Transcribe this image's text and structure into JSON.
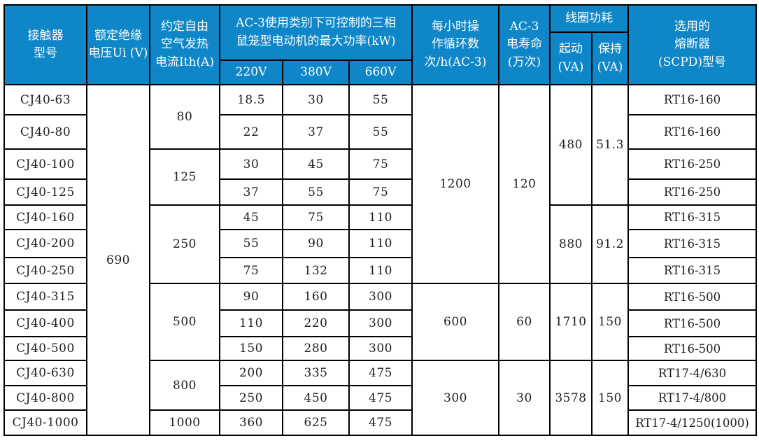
{
  "table": {
    "header": {
      "col_model": "接触器\n型号",
      "col_voltage": "额定绝缘\n电压Ui (V)",
      "col_ith": "约定自由\n空气发热\n电流Ith(A)",
      "col_power_group": "AC-3使用类别下可控制的三相\n鼠笼型电动机的最大功率(kW)",
      "col_power_subs": [
        "220V",
        "380V",
        "660V"
      ],
      "col_cycles": "每小时操\n作循环数\n次/h(AC-3)",
      "col_life": "AC-3\n电寿命\n(万次)",
      "col_coil_group": "线圈功耗",
      "col_coil_start": "起动\n(VA)",
      "col_coil_hold": "保持\n(VA)",
      "col_fuse": "选用的\n熔断器\n(SCPD)型号"
    },
    "rows": [
      {
        "model": "CJ40-63",
        "p220": "18.5",
        "p380": "30",
        "p660": "55",
        "fuse": "RT16-160"
      },
      {
        "model": "CJ40-80",
        "p220": "22",
        "p380": "37",
        "p660": "55",
        "fuse": "RT16-160"
      },
      {
        "model": "CJ40-100",
        "p220": "30",
        "p380": "45",
        "p660": "75",
        "fuse": "RT16-250"
      },
      {
        "model": "CJ40-125",
        "p220": "37",
        "p380": "55",
        "p660": "75",
        "fuse": "RT16-250"
      },
      {
        "model": "CJ40-160",
        "p220": "45",
        "p380": "75",
        "p660": "110",
        "fuse": "RT16-315"
      },
      {
        "model": "CJ40-200",
        "p220": "55",
        "p380": "90",
        "p660": "110",
        "fuse": "RT16-315"
      },
      {
        "model": "CJ40-250",
        "p220": "75",
        "p380": "132",
        "p660": "110",
        "fuse": "RT16-315"
      },
      {
        "model": "CJ40-315",
        "p220": "90",
        "p380": "160",
        "p660": "300",
        "fuse": "RT16-500"
      },
      {
        "model": "CJ40-400",
        "p220": "110",
        "p380": "220",
        "p660": "300",
        "fuse": "RT16-500"
      },
      {
        "model": "CJ40-500",
        "p220": "150",
        "p380": "280",
        "p660": "300",
        "fuse": "RT16-500"
      },
      {
        "model": "CJ40-630",
        "p220": "200",
        "p380": "335",
        "p660": "475",
        "fuse": "RT17-4/630"
      },
      {
        "model": "CJ40-800",
        "p220": "250",
        "p380": "450",
        "p660": "475",
        "fuse": "RT17-4/800"
      },
      {
        "model": "CJ40-1000",
        "p220": "360",
        "p380": "625",
        "p660": "475",
        "fuse": "RT17-4/1250(1000)"
      }
    ],
    "spans": {
      "voltage": [
        {
          "start": 0,
          "count": 13,
          "value": "690"
        }
      ],
      "ith": [
        {
          "start": 0,
          "count": 2,
          "value": "80"
        },
        {
          "start": 2,
          "count": 2,
          "value": "125"
        },
        {
          "start": 4,
          "count": 3,
          "value": "250"
        },
        {
          "start": 7,
          "count": 3,
          "value": "500"
        },
        {
          "start": 10,
          "count": 2,
          "value": "800"
        },
        {
          "start": 12,
          "count": 1,
          "value": "1000"
        }
      ],
      "cycles": [
        {
          "start": 0,
          "count": 7,
          "value": "1200"
        },
        {
          "start": 7,
          "count": 3,
          "value": "600"
        },
        {
          "start": 10,
          "count": 3,
          "value": "300"
        }
      ],
      "life": [
        {
          "start": 0,
          "count": 7,
          "value": "120"
        },
        {
          "start": 7,
          "count": 3,
          "value": "60"
        },
        {
          "start": 10,
          "count": 3,
          "value": "30"
        }
      ],
      "coil_start": [
        {
          "start": 0,
          "count": 4,
          "value": "480"
        },
        {
          "start": 4,
          "count": 3,
          "value": "880"
        },
        {
          "start": 7,
          "count": 3,
          "value": "1710"
        },
        {
          "start": 10,
          "count": 3,
          "value": "3578"
        }
      ],
      "coil_hold": [
        {
          "start": 0,
          "count": 4,
          "value": "51.3"
        },
        {
          "start": 4,
          "count": 3,
          "value": "91.2"
        },
        {
          "start": 7,
          "count": 3,
          "value": "150"
        },
        {
          "start": 10,
          "count": 3,
          "value": "150"
        }
      ]
    }
  },
  "colors": {
    "header_bg": "#0e86c7",
    "header_text": "#ffffff",
    "border": "#000000",
    "body_text": "#1f1f1f",
    "body_bg": "#ffffff"
  }
}
